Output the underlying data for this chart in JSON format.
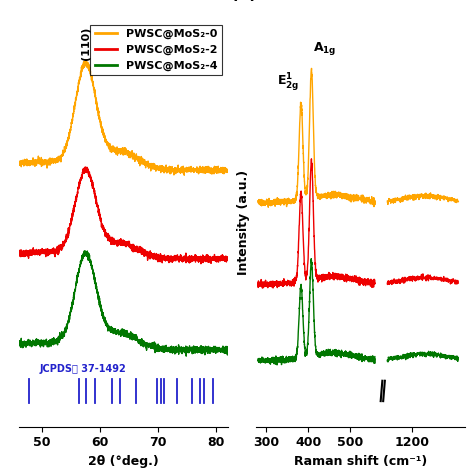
{
  "fig_width": 4.74,
  "fig_height": 4.74,
  "dpi": 100,
  "colors": {
    "orange": "#FFA500",
    "red": "#EE0000",
    "green": "#007700",
    "jcpds_blue": "#2222CC"
  },
  "legend_labels": [
    "PWSC@MoS₂-0",
    "PWSC@MoS₂-2",
    "PWSC@MoS₂-4"
  ],
  "xrd": {
    "xlim": [
      46,
      82
    ],
    "xticks": [
      50,
      60,
      70,
      80
    ],
    "jcpds_label": "JCPDS： 37-1492",
    "jcpds_peaks": [
      47.8,
      56.3,
      57.6,
      59.2,
      62.0,
      63.5,
      66.2,
      69.8,
      70.5,
      71.0,
      73.2,
      75.8,
      77.2,
      78.0,
      79.5
    ]
  },
  "raman": {
    "xticks_real": [
      300,
      400,
      500,
      1200
    ],
    "ylabel": "Intensity (a.u.)",
    "xlabel": "Raman shift (cm⁻¹)"
  }
}
